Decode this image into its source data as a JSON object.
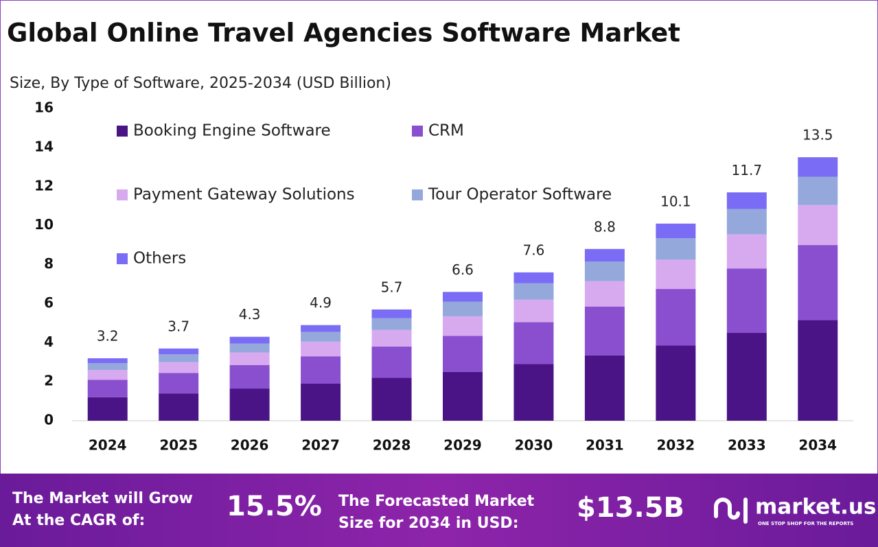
{
  "chart_data": {
    "type": "stacked_bar",
    "title": "Global Online Travel Agencies Software Market",
    "subtitle": "Size, By Type of Software, 2025-2034 (USD Billion)",
    "categories": [
      "2024",
      "2025",
      "2026",
      "2027",
      "2028",
      "2029",
      "2030",
      "2031",
      "2032",
      "2033",
      "2034"
    ],
    "series": [
      {
        "name": "Booking Engine Software",
        "color": "#4a1486",
        "values": [
          1.2,
          1.4,
          1.65,
          1.9,
          2.2,
          2.5,
          2.9,
          3.35,
          3.85,
          4.5,
          5.15
        ]
      },
      {
        "name": "CRM",
        "color": "#8a4fcf",
        "values": [
          0.9,
          1.05,
          1.2,
          1.4,
          1.6,
          1.85,
          2.15,
          2.5,
          2.9,
          3.3,
          3.85
        ]
      },
      {
        "name": "Payment Gateway Solutions",
        "color": "#d7aaf0",
        "values": [
          0.5,
          0.55,
          0.65,
          0.75,
          0.85,
          1.0,
          1.15,
          1.3,
          1.5,
          1.75,
          2.05
        ]
      },
      {
        "name": "Tour Operator Software",
        "color": "#94a8dc",
        "values": [
          0.35,
          0.4,
          0.45,
          0.5,
          0.6,
          0.75,
          0.85,
          1.0,
          1.1,
          1.3,
          1.45
        ]
      },
      {
        "name": "Others",
        "color": "#7b6cf5",
        "values": [
          0.25,
          0.3,
          0.35,
          0.35,
          0.45,
          0.5,
          0.55,
          0.65,
          0.75,
          0.85,
          1.0
        ]
      }
    ],
    "totals": [
      3.2,
      3.7,
      4.3,
      4.9,
      5.7,
      6.6,
      7.6,
      8.8,
      10.1,
      11.7,
      13.5
    ],
    "ylim": [
      0,
      16
    ],
    "yticks": [
      0,
      2,
      4,
      6,
      8,
      10,
      12,
      14,
      16
    ],
    "grid": false
  },
  "footer": {
    "cagr_text": "The Market will Grow At the CAGR of:",
    "cagr_value": "15.5%",
    "forecast_text": "The Forecasted Market Size for 2034 in USD:",
    "forecast_value": "$13.5B",
    "brand": "market.us",
    "tagline": "ONE STOP SHOP FOR THE REPORTS"
  }
}
